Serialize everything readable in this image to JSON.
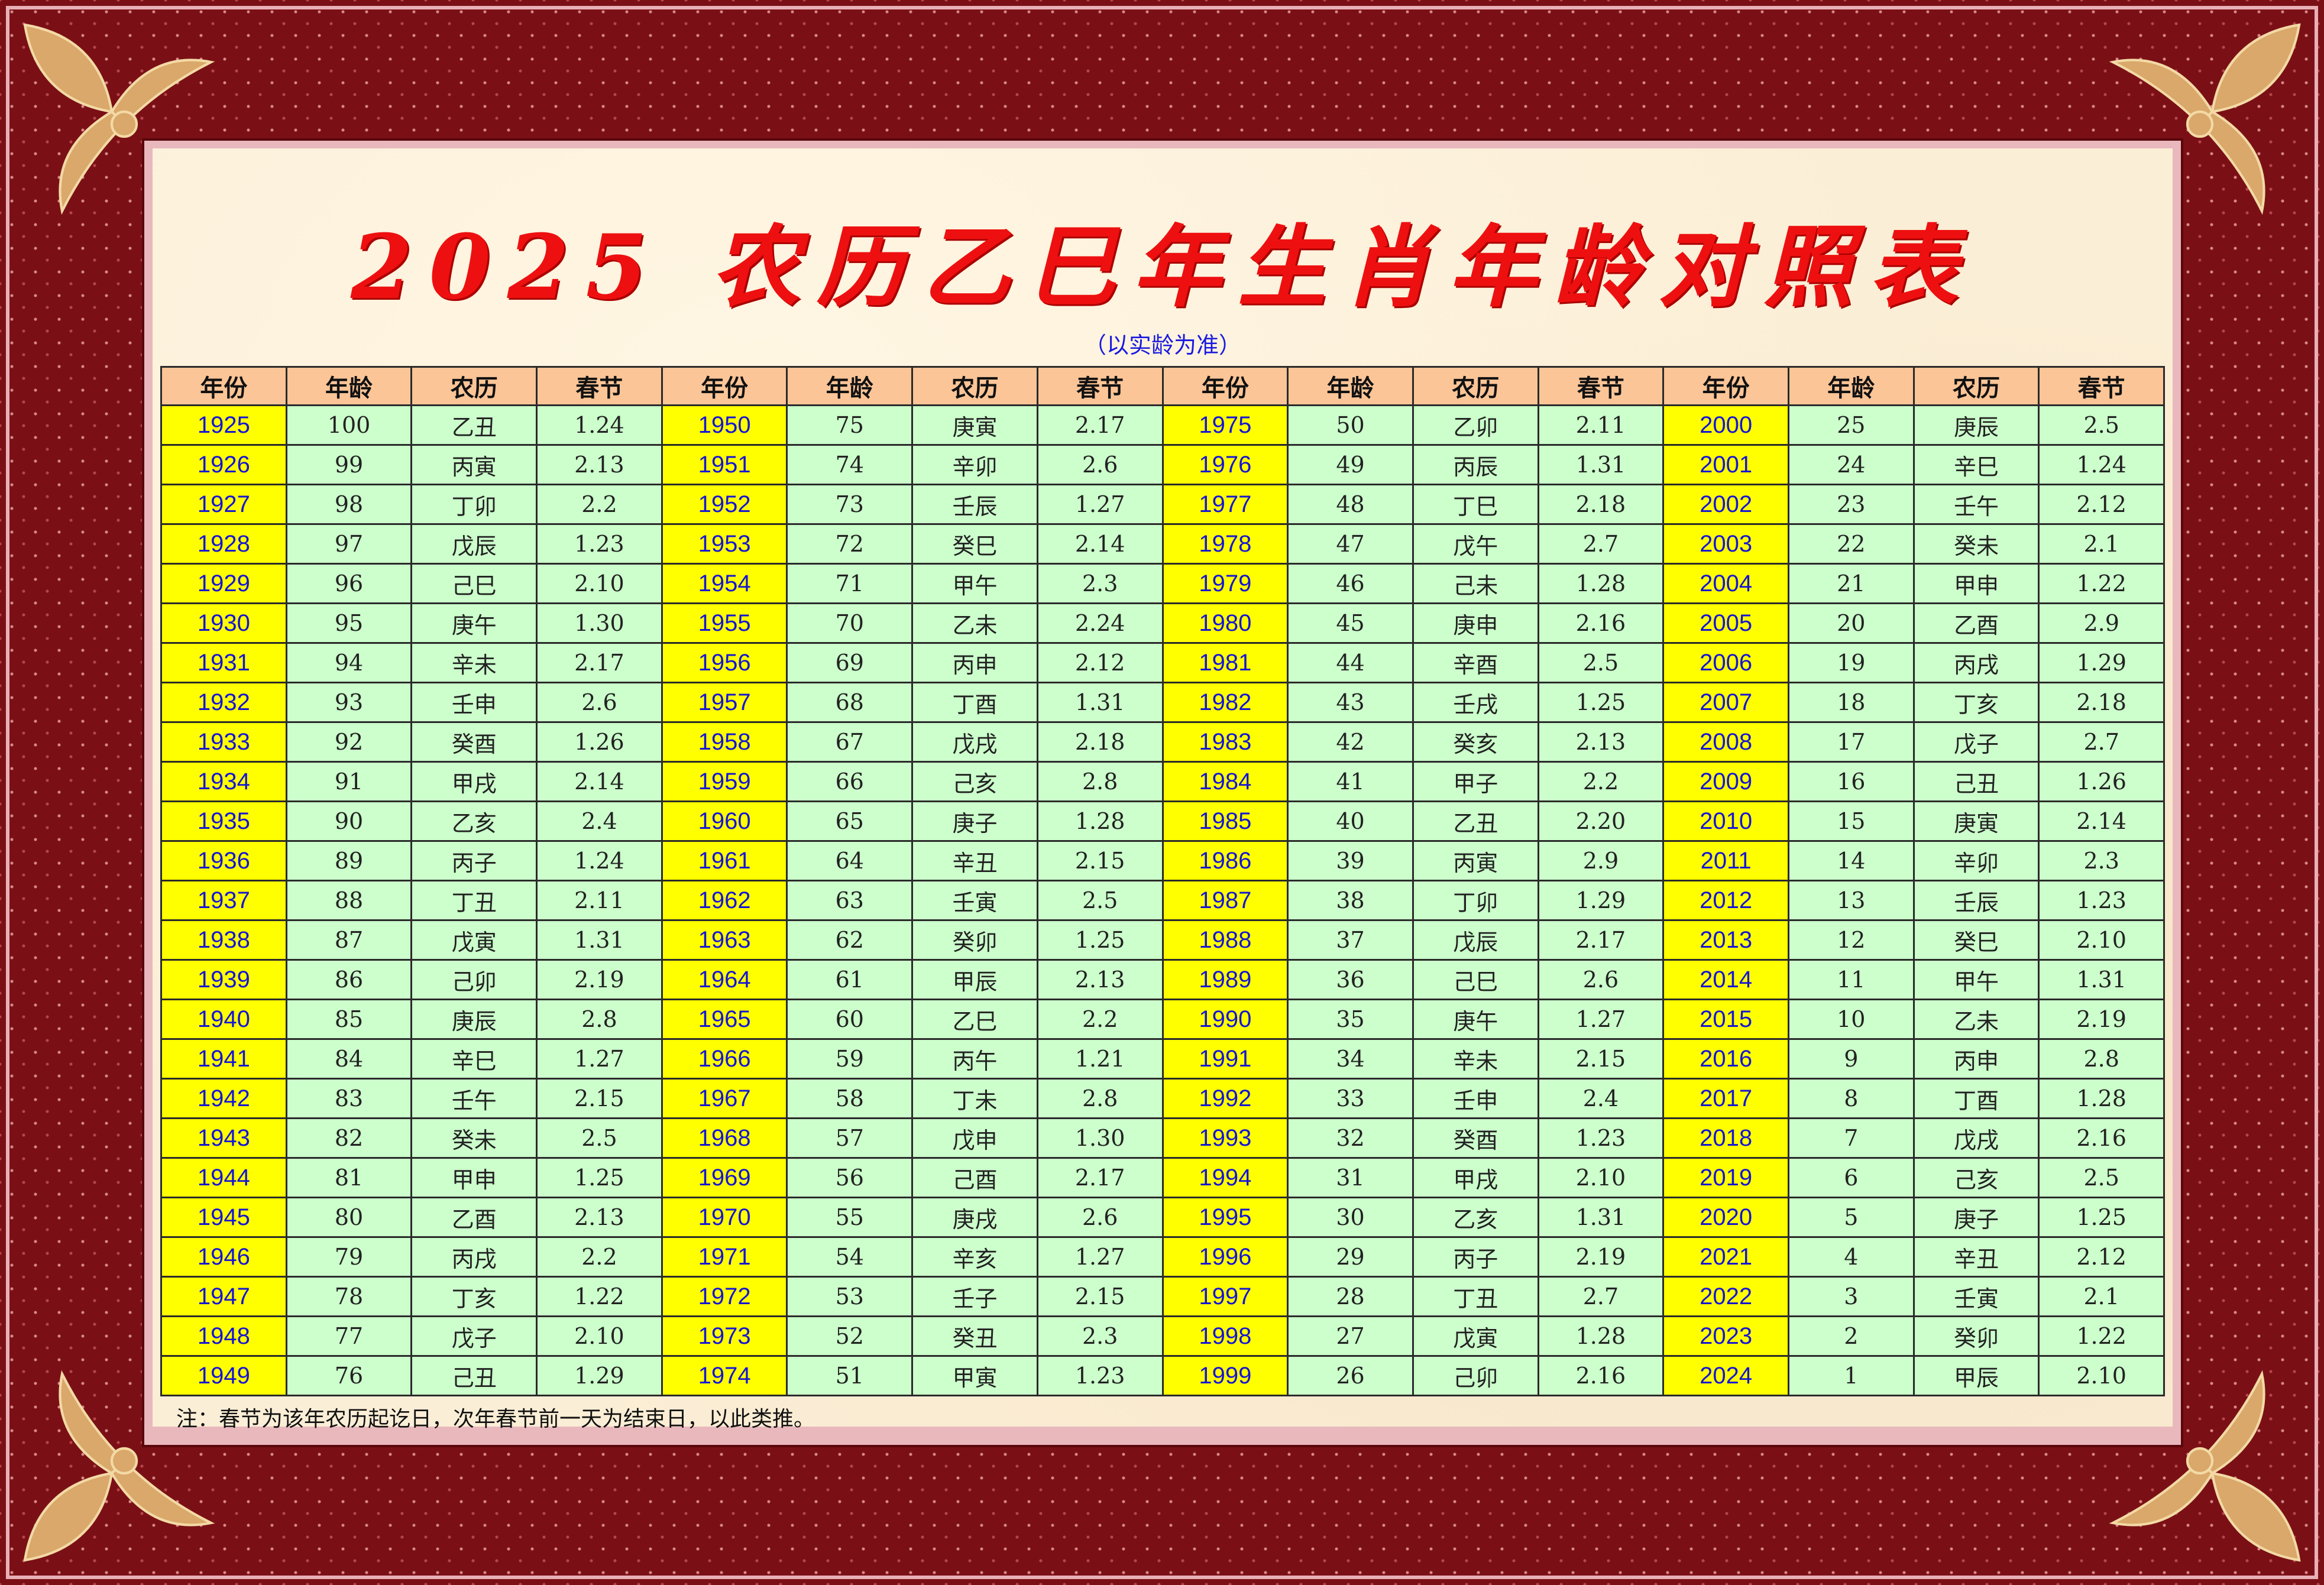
{
  "title": "2025 农历乙巳年生肖年龄对照表",
  "subtitle": "（以实龄为准）",
  "headers": [
    "年份",
    "年龄",
    "农历",
    "春节"
  ],
  "groups": [
    {
      "years": [
        "1925",
        "1926",
        "1927",
        "1928",
        "1929",
        "1930",
        "1931",
        "1932",
        "1933",
        "1934",
        "1935",
        "1936",
        "1937",
        "1938",
        "1939",
        "1940",
        "1941",
        "1942",
        "1943",
        "1944",
        "1945",
        "1946",
        "1947",
        "1948",
        "1949"
      ],
      "ages": [
        "100",
        "99",
        "98",
        "97",
        "96",
        "95",
        "94",
        "93",
        "92",
        "91",
        "90",
        "89",
        "88",
        "87",
        "86",
        "85",
        "84",
        "83",
        "82",
        "81",
        "80",
        "79",
        "78",
        "77",
        "76"
      ],
      "lunar": [
        "乙丑",
        "丙寅",
        "丁卯",
        "戊辰",
        "己巳",
        "庚午",
        "辛未",
        "壬申",
        "癸酉",
        "甲戌",
        "乙亥",
        "丙子",
        "丁丑",
        "戊寅",
        "己卯",
        "庚辰",
        "辛巳",
        "壬午",
        "癸未",
        "甲申",
        "乙酉",
        "丙戌",
        "丁亥",
        "戊子",
        "己丑"
      ],
      "spring": [
        "1.24",
        "2.13",
        "2.2",
        "1.23",
        "2.10",
        "1.30",
        "2.17",
        "2.6",
        "1.26",
        "2.14",
        "2.4",
        "1.24",
        "2.11",
        "1.31",
        "2.19",
        "2.8",
        "1.27",
        "2.15",
        "2.5",
        "1.25",
        "2.13",
        "2.2",
        "1.22",
        "2.10",
        "1.29"
      ]
    },
    {
      "years": [
        "1950",
        "1951",
        "1952",
        "1953",
        "1954",
        "1955",
        "1956",
        "1957",
        "1958",
        "1959",
        "1960",
        "1961",
        "1962",
        "1963",
        "1964",
        "1965",
        "1966",
        "1967",
        "1968",
        "1969",
        "1970",
        "1971",
        "1972",
        "1973",
        "1974"
      ],
      "ages": [
        "75",
        "74",
        "73",
        "72",
        "71",
        "70",
        "69",
        "68",
        "67",
        "66",
        "65",
        "64",
        "63",
        "62",
        "61",
        "60",
        "59",
        "58",
        "57",
        "56",
        "55",
        "54",
        "53",
        "52",
        "51"
      ],
      "lunar": [
        "庚寅",
        "辛卯",
        "壬辰",
        "癸巳",
        "甲午",
        "乙未",
        "丙申",
        "丁酉",
        "戊戌",
        "己亥",
        "庚子",
        "辛丑",
        "壬寅",
        "癸卯",
        "甲辰",
        "乙巳",
        "丙午",
        "丁未",
        "戊申",
        "己酉",
        "庚戌",
        "辛亥",
        "壬子",
        "癸丑",
        "甲寅"
      ],
      "spring": [
        "2.17",
        "2.6",
        "1.27",
        "2.14",
        "2.3",
        "2.24",
        "2.12",
        "1.31",
        "2.18",
        "2.8",
        "1.28",
        "2.15",
        "2.5",
        "1.25",
        "2.13",
        "2.2",
        "1.21",
        "2.8",
        "1.30",
        "2.17",
        "2.6",
        "1.27",
        "2.15",
        "2.3",
        "1.23"
      ]
    },
    {
      "years": [
        "1975",
        "1976",
        "1977",
        "1978",
        "1979",
        "1980",
        "1981",
        "1982",
        "1983",
        "1984",
        "1985",
        "1986",
        "1987",
        "1988",
        "1989",
        "1990",
        "1991",
        "1992",
        "1993",
        "1994",
        "1995",
        "1996",
        "1997",
        "1998",
        "1999"
      ],
      "ages": [
        "50",
        "49",
        "48",
        "47",
        "46",
        "45",
        "44",
        "43",
        "42",
        "41",
        "40",
        "39",
        "38",
        "37",
        "36",
        "35",
        "34",
        "33",
        "32",
        "31",
        "30",
        "29",
        "28",
        "27",
        "26"
      ],
      "lunar": [
        "乙卯",
        "丙辰",
        "丁巳",
        "戊午",
        "己未",
        "庚申",
        "辛酉",
        "壬戌",
        "癸亥",
        "甲子",
        "乙丑",
        "丙寅",
        "丁卯",
        "戊辰",
        "己巳",
        "庚午",
        "辛未",
        "壬申",
        "癸酉",
        "甲戌",
        "乙亥",
        "丙子",
        "丁丑",
        "戊寅",
        "己卯"
      ],
      "spring": [
        "2.11",
        "1.31",
        "2.18",
        "2.7",
        "1.28",
        "2.16",
        "2.5",
        "1.25",
        "2.13",
        "2.2",
        "2.20",
        "2.9",
        "1.29",
        "2.17",
        "2.6",
        "1.27",
        "2.15",
        "2.4",
        "1.23",
        "2.10",
        "1.31",
        "2.19",
        "2.7",
        "1.28",
        "2.16"
      ]
    },
    {
      "years": [
        "2000",
        "2001",
        "2002",
        "2003",
        "2004",
        "2005",
        "2006",
        "2007",
        "2008",
        "2009",
        "2010",
        "2011",
        "2012",
        "2013",
        "2014",
        "2015",
        "2016",
        "2017",
        "2018",
        "2019",
        "2020",
        "2021",
        "2022",
        "2023",
        "2024"
      ],
      "ages": [
        "25",
        "24",
        "23",
        "22",
        "21",
        "20",
        "19",
        "18",
        "17",
        "16",
        "15",
        "14",
        "13",
        "12",
        "11",
        "10",
        "9",
        "8",
        "7",
        "6",
        "5",
        "4",
        "3",
        "2",
        "1"
      ],
      "lunar": [
        "庚辰",
        "辛巳",
        "壬午",
        "癸未",
        "甲申",
        "乙酉",
        "丙戌",
        "丁亥",
        "戊子",
        "己丑",
        "庚寅",
        "辛卯",
        "壬辰",
        "癸巳",
        "甲午",
        "乙未",
        "丙申",
        "丁酉",
        "戊戌",
        "己亥",
        "庚子",
        "辛丑",
        "壬寅",
        "癸卯",
        "甲辰"
      ],
      "spring": [
        "2.5",
        "1.24",
        "2.12",
        "2.1",
        "1.22",
        "2.9",
        "1.29",
        "2.18",
        "2.7",
        "1.26",
        "2.14",
        "2.3",
        "1.23",
        "2.10",
        "1.31",
        "2.19",
        "2.8",
        "1.28",
        "2.16",
        "2.5",
        "1.25",
        "2.12",
        "2.1",
        "1.22",
        "2.10"
      ]
    }
  ],
  "note": "注：春节为该年农历起讫日，次年春节前一天为结束日，以此类推。",
  "colors": {
    "title": "#ee1010",
    "subtitle": "#1a1ae0",
    "header_bg": "#fcc597",
    "year_bg": "#ffff00",
    "year_text": "#1515d6",
    "cell_bg": "#ccffcc",
    "frame": "#7a1016"
  },
  "icons": [
    "fleur-de-lis-ornament"
  ]
}
